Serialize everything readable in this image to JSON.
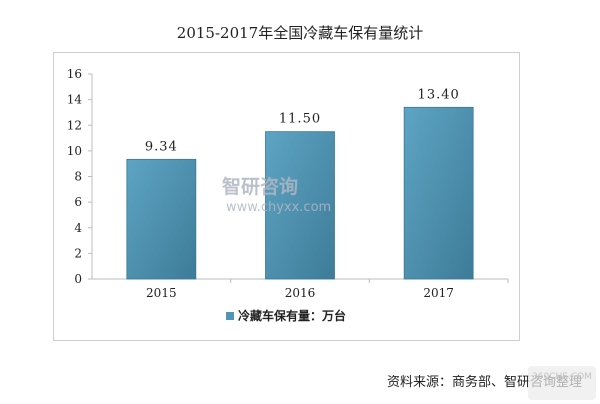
{
  "chart_data": {
    "type": "bar",
    "title": "2015-2017年全国冷藏车保有量统计",
    "categories": [
      "2015",
      "2016",
      "2017"
    ],
    "series": [
      {
        "name": "冷藏车保有量：万台",
        "values": [
          9.34,
          11.5,
          13.4
        ],
        "labels": [
          "9.34",
          "11.50",
          "13.40"
        ]
      }
    ],
    "ylim": [
      0,
      16
    ],
    "yticks": [
      0,
      2,
      4,
      6,
      8,
      10,
      12,
      14,
      16
    ],
    "grid": false,
    "legend_position": "bottom"
  },
  "colors": {
    "bar": "#4f95b5",
    "bar_dark": "#3a7895",
    "axis": "#bdbdbd"
  },
  "source_text": "资料来源：商务部、智研咨询整理",
  "watermark": {
    "logo_text": "智研咨询",
    "url": "www.chyxx.com"
  },
  "corner_watermark": {
    "site": "360CHE.COM"
  }
}
